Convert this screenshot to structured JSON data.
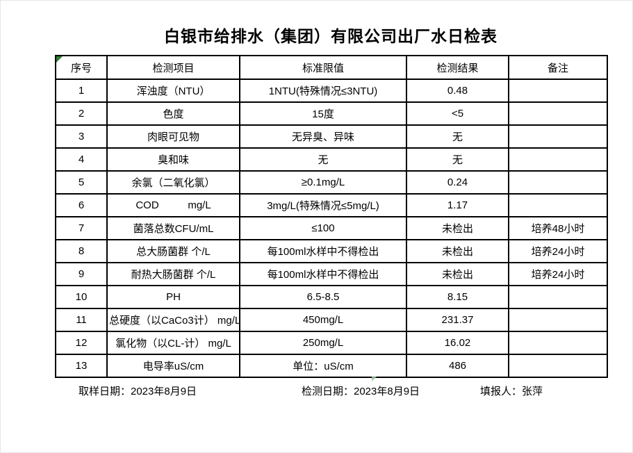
{
  "page": {
    "title": "白银市给排水（集团）有限公司出厂水日检表",
    "background_color": "#ffffff",
    "border_color": "#000000",
    "marker_green": "#2e7d32",
    "marker_light_green": "#9cc29c"
  },
  "table": {
    "headers": [
      "序号",
      "检测项目",
      "标准限值",
      "检测结果",
      "备注"
    ],
    "rows": [
      [
        "1",
        "浑浊度（NTU）",
        "1NTU(特殊情况≤3NTU)",
        "0.48",
        ""
      ],
      [
        "2",
        "色度",
        "15度",
        "<5",
        ""
      ],
      [
        "3",
        "肉眼可见物",
        "无异臭、异味",
        "无",
        ""
      ],
      [
        "4",
        "臭和味",
        "无",
        "无",
        ""
      ],
      [
        "5",
        "余氯（二氧化氯）",
        "≥0.1mg/L",
        "0.24",
        ""
      ],
      [
        "6",
        "COD          mg/L",
        "3mg/L(特殊情况≤5mg/L)",
        "1.17",
        ""
      ],
      [
        "7",
        "菌落总数CFU/mL",
        "≤100",
        "未检出",
        "培养48小时"
      ],
      [
        "8",
        "总大肠菌群 个/L",
        "每100ml水样中不得检出",
        "未检出",
        "培养24小时"
      ],
      [
        "9",
        "耐热大肠菌群 个/L",
        "每100ml水样中不得检出",
        "未检出",
        "培养24小时"
      ],
      [
        "10",
        "PH",
        "6.5-8.5",
        "8.15",
        ""
      ],
      [
        "11",
        "总硬度（以CaCo3计） mg/L",
        "450mg/L",
        "231.37",
        ""
      ],
      [
        "12",
        "氯化物（以CL-计） mg/L",
        "250mg/L",
        "16.02",
        ""
      ],
      [
        "13",
        "电导率uS/cm",
        "单位：uS/cm",
        "486",
        ""
      ]
    ]
  },
  "footer": {
    "sampling_date": "取样日期：2023年8月9日",
    "test_date": "检测日期：2023年8月9日",
    "reporter": "填报人：张萍"
  }
}
